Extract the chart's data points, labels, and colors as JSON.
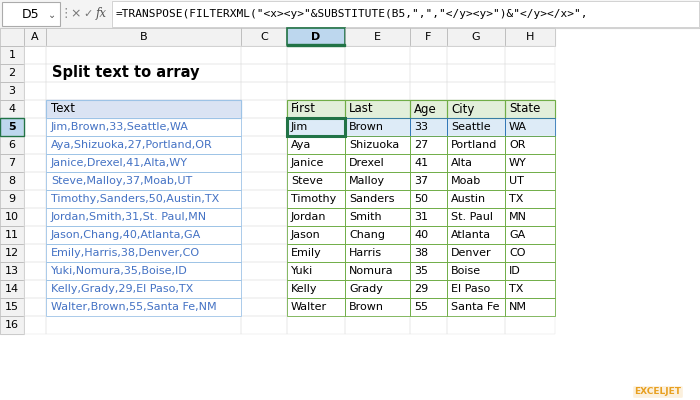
{
  "formula_bar_cell": "D5",
  "formula_bar_text": "=TRANSPOSE(FILTERXML(\"<x><y>\"&SUBSTITUTE(B5,\",\",\"</y><y>\")&\"</y></x>\",",
  "title": "Split text to array",
  "col_labels": [
    "A",
    "B",
    "C",
    "D",
    "E",
    "F",
    "G",
    "H"
  ],
  "left_table_header": "Text",
  "left_table_data": [
    "Jim,Brown,33,Seattle,WA",
    "Aya,Shizuoka,27,Portland,OR",
    "Janice,Drexel,41,Alta,WY",
    "Steve,Malloy,37,Moab,UT",
    "Timothy,Sanders,50,Austin,TX",
    "Jordan,Smith,31,St. Paul,MN",
    "Jason,Chang,40,Atlanta,GA",
    "Emily,Harris,38,Denver,CO",
    "Yuki,Nomura,35,Boise,ID",
    "Kelly,Grady,29,El Paso,TX",
    "Walter,Brown,55,Santa Fe,NM"
  ],
  "right_table_headers": [
    "First",
    "Last",
    "Age",
    "City",
    "State"
  ],
  "right_table_data": [
    [
      "Jim",
      "Brown",
      "33",
      "Seattle",
      "WA"
    ],
    [
      "Aya",
      "Shizuoka",
      "27",
      "Portland",
      "OR"
    ],
    [
      "Janice",
      "Drexel",
      "41",
      "Alta",
      "WY"
    ],
    [
      "Steve",
      "Malloy",
      "37",
      "Moab",
      "UT"
    ],
    [
      "Timothy",
      "Sanders",
      "50",
      "Austin",
      "TX"
    ],
    [
      "Jordan",
      "Smith",
      "31",
      "St. Paul",
      "MN"
    ],
    [
      "Jason",
      "Chang",
      "40",
      "Atlanta",
      "GA"
    ],
    [
      "Emily",
      "Harris",
      "38",
      "Denver",
      "CO"
    ],
    [
      "Yuki",
      "Nomura",
      "35",
      "Boise",
      "ID"
    ],
    [
      "Kelly",
      "Grady",
      "29",
      "El Paso",
      "TX"
    ],
    [
      "Walter",
      "Brown",
      "55",
      "Santa Fe",
      "NM"
    ]
  ],
  "colors": {
    "left_text_blue": "#4472C4",
    "col_header_bg": "#E8EAED",
    "col_header_selected_bg": "#BDD7EE",
    "col_header_selected_border": "#217346",
    "row_num_bg": "#F2F2F2",
    "cell_bg": "#FFFFFF",
    "grid_line": "#D0D0D0",
    "right_header_bg": "#E2EFDA",
    "right_header_border": "#70AD47",
    "right_row5_bg": "#DDEBF7",
    "right_row5_border": "#2E75B6",
    "selected_cell_border": "#217346",
    "left_header_bg": "#DAE3F3",
    "left_header_border": "#9DC3E6",
    "left_data_border": "#9DC3E6",
    "formula_bar_bg": "#FFFFFF",
    "formula_bar_border": "#D0D0D0",
    "watermark": "#E8A020"
  },
  "figsize": [
    7.0,
    4.0
  ],
  "dpi": 100,
  "formula_display": "=TRANSPOSE(FILTERXML(\"<x><y>\"&SUBSTITUTE(B5,\",\",\"</y><y>\")&\"</y></x>\","
}
